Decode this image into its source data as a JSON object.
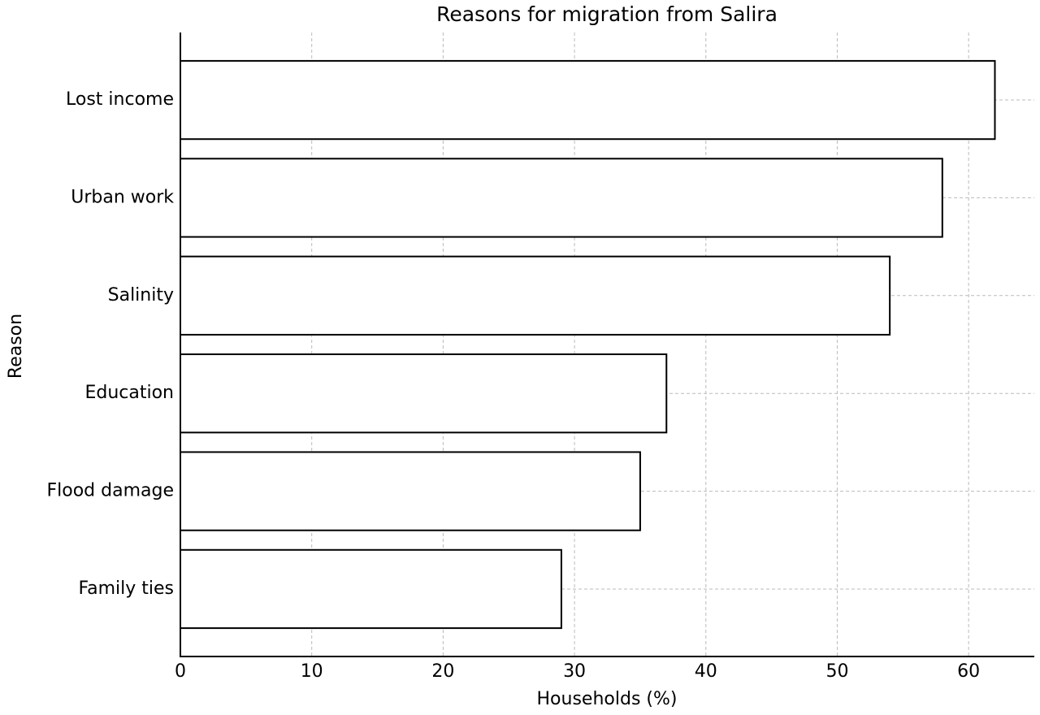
{
  "chart_data": {
    "type": "barh",
    "title": "Reasons for migration from Salira",
    "xlabel": "Households (%)",
    "ylabel": "Reason",
    "categories": [
      "Lost income",
      "Urban work",
      "Salinity",
      "Education",
      "Flood damage",
      "Family ties"
    ],
    "values": [
      62,
      58,
      54,
      37,
      35,
      29
    ],
    "color": "#ffffff",
    "edgecolor": "#000000",
    "xlim": [
      0,
      65
    ],
    "xticks": [
      0,
      10,
      20,
      30,
      40,
      50,
      60
    ],
    "grid": true
  }
}
